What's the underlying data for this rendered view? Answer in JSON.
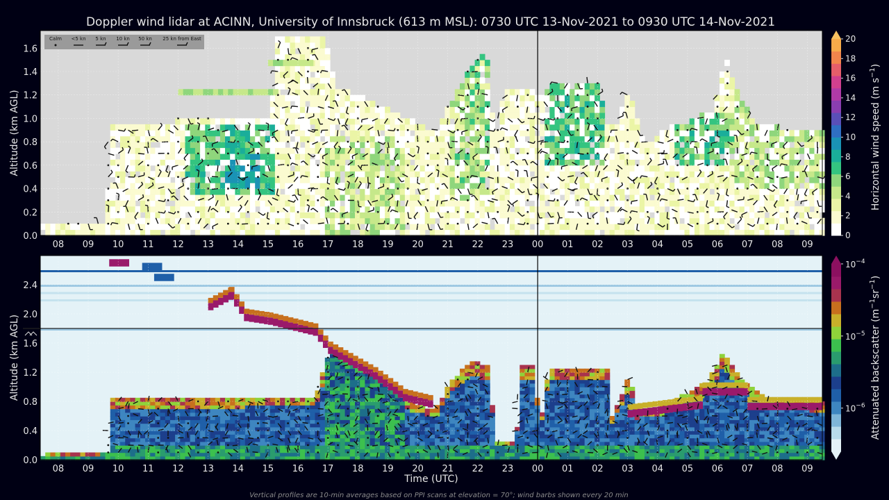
{
  "title": "Doppler wind lidar at ACINN, University of Innsbruck (613 m MSL): 0730 UTC 13-Nov-2021 to 0930 UTC 14-Nov-2021",
  "footnote": "Vertical profiles are 10-min averages based on PPI scans at elevation = 70°; wind barbs shown every 20 min",
  "colors": {
    "background": "#000014",
    "nodata": "#d9d9d9",
    "text": "#e6e6e6",
    "barb": "#111111"
  },
  "chart_data": [
    {
      "type": "heatmap",
      "name": "wind-speed-panel",
      "ylabel": "Altitude (km AGL)",
      "xlabel": "",
      "x_ticks": [
        "08",
        "09",
        "10",
        "11",
        "12",
        "13",
        "14",
        "15",
        "16",
        "17",
        "18",
        "19",
        "20",
        "21",
        "22",
        "23",
        "00",
        "01",
        "02",
        "03",
        "04",
        "05",
        "06",
        "07",
        "08",
        "09"
      ],
      "y_ticks": [
        "0.0",
        "0.2",
        "0.4",
        "0.6",
        "0.8",
        "1.0",
        "1.2",
        "1.4",
        "1.6"
      ],
      "ylim": [
        0,
        1.75
      ],
      "colorbar": {
        "label": "Horizontal wind speed (m s",
        "label_sup": "−1",
        "label_end": ")",
        "ticks": [
          "0",
          "2",
          "4",
          "6",
          "8",
          "10",
          "12",
          "14",
          "16",
          "18",
          "20"
        ],
        "range": [
          0,
          20
        ],
        "colors": [
          "#ffffff",
          "#fbfbd0",
          "#ebf5a6",
          "#c6e88a",
          "#8fd67c",
          "#34c480",
          "#1aae9a",
          "#1a93b5",
          "#2f6fc2",
          "#5a4fb8",
          "#8a3eb0",
          "#b03aa6",
          "#d1408e",
          "#e65e6a",
          "#f2854c",
          "#f7ab4a"
        ]
      },
      "legend": {
        "placement": "top-left",
        "entries": [
          "Calm",
          "<5 kn",
          "5 kn",
          "10 kn",
          "50 kn",
          "25 kn from East"
        ]
      },
      "grid": true,
      "vertical_marker": "00"
    },
    {
      "type": "heatmap",
      "name": "backscatter-panel",
      "ylabel": "Altitude (km AGL)",
      "xlabel": "Time (UTC)",
      "x_ticks": [
        "08",
        "09",
        "10",
        "11",
        "12",
        "13",
        "14",
        "15",
        "16",
        "17",
        "18",
        "19",
        "20",
        "21",
        "22",
        "23",
        "00",
        "01",
        "02",
        "03",
        "04",
        "05",
        "06",
        "07",
        "08",
        "09"
      ],
      "y_ticks": [
        "0.0",
        "0.4",
        "0.8",
        "1.2",
        "1.6",
        "2.0",
        "2.4"
      ],
      "ylim": [
        0,
        2.8
      ],
      "colorbar": {
        "label": "Attenuated backscatter (m",
        "label_sup": "−1",
        "label_mid": "sr",
        "label_sup2": "−1",
        "label_end": ")",
        "ticks": [
          "10",
          "10",
          "10"
        ],
        "tick_exps": [
          "−6",
          "−5",
          "−4"
        ],
        "range_log": [
          -6.6,
          -4
        ],
        "colors": [
          "#e4f2f7",
          "#b8dbea",
          "#7fb6d8",
          "#3e86c0",
          "#1f5fa8",
          "#1c3f8c",
          "#1d6e8a",
          "#2a9c6e",
          "#3cc04e",
          "#8fd23a",
          "#c8b02a",
          "#c7701e",
          "#a8334e",
          "#9a1a6a",
          "#8c1060"
        ]
      },
      "grid": true,
      "vertical_marker": "00",
      "barb_range_marker": "1.8 km"
    }
  ]
}
